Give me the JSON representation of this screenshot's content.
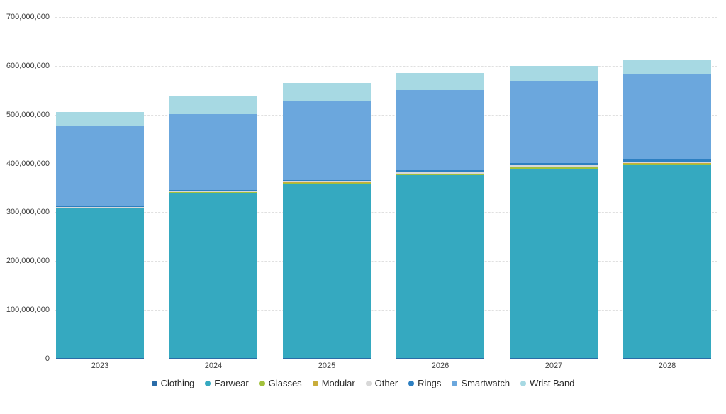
{
  "chart_data": {
    "type": "bar",
    "stacked": true,
    "title": "",
    "xlabel": "",
    "ylabel": "",
    "grid": "horizontal-dashed",
    "legend_position": "bottom",
    "categories": [
      "2023",
      "2024",
      "2025",
      "2026",
      "2027",
      "2028"
    ],
    "series": [
      {
        "name": "Clothing",
        "color": "#2a6ca8",
        "values": [
          1500000,
          1500000,
          1500000,
          1500000,
          1500000,
          1500000
        ]
      },
      {
        "name": "Earwear",
        "color": "#35a9c0",
        "values": [
          307000000,
          338000000,
          357000000,
          375000000,
          388000000,
          395000000
        ]
      },
      {
        "name": "Glasses",
        "color": "#a2c13c",
        "values": [
          1000000,
          1500000,
          2000000,
          2000000,
          2500000,
          3000000
        ]
      },
      {
        "name": "Modular",
        "color": "#c9ad3b",
        "values": [
          500000,
          500000,
          1000000,
          1000000,
          1000000,
          1000000
        ]
      },
      {
        "name": "Other",
        "color": "#d8d8d8",
        "values": [
          1000000,
          1500000,
          2000000,
          2500000,
          3000000,
          3500000
        ]
      },
      {
        "name": "Rings",
        "color": "#2d7fc1",
        "values": [
          2000000,
          2500000,
          3000000,
          4000000,
          4500000,
          5500000
        ]
      },
      {
        "name": "Smartwatch",
        "color": "#6ba7dd",
        "values": [
          163000000,
          156000000,
          162000000,
          164000000,
          169000000,
          173000000
        ]
      },
      {
        "name": "Wrist Band",
        "color": "#a7d9e3",
        "values": [
          30000000,
          36000000,
          36000000,
          35000000,
          31000000,
          30000000
        ]
      }
    ],
    "totals_approx": [
      506000000,
      537000000,
      564000000,
      585000000,
      600000000,
      612000000
    ],
    "ylim": [
      0,
      700000000
    ],
    "yticks": [
      0,
      100000000,
      200000000,
      300000000,
      400000000,
      500000000,
      600000000,
      700000000
    ],
    "ytick_labels": [
      "0",
      "100,000,000",
      "200,000,000",
      "300,000,000",
      "400,000,000",
      "500,000,000",
      "600,000,000",
      "700,000,000"
    ]
  },
  "colors": {
    "background": "#ffffff",
    "gridline": "#e0e0e0",
    "axis_text": "#404040",
    "legend_text": "#2b2b2b"
  }
}
